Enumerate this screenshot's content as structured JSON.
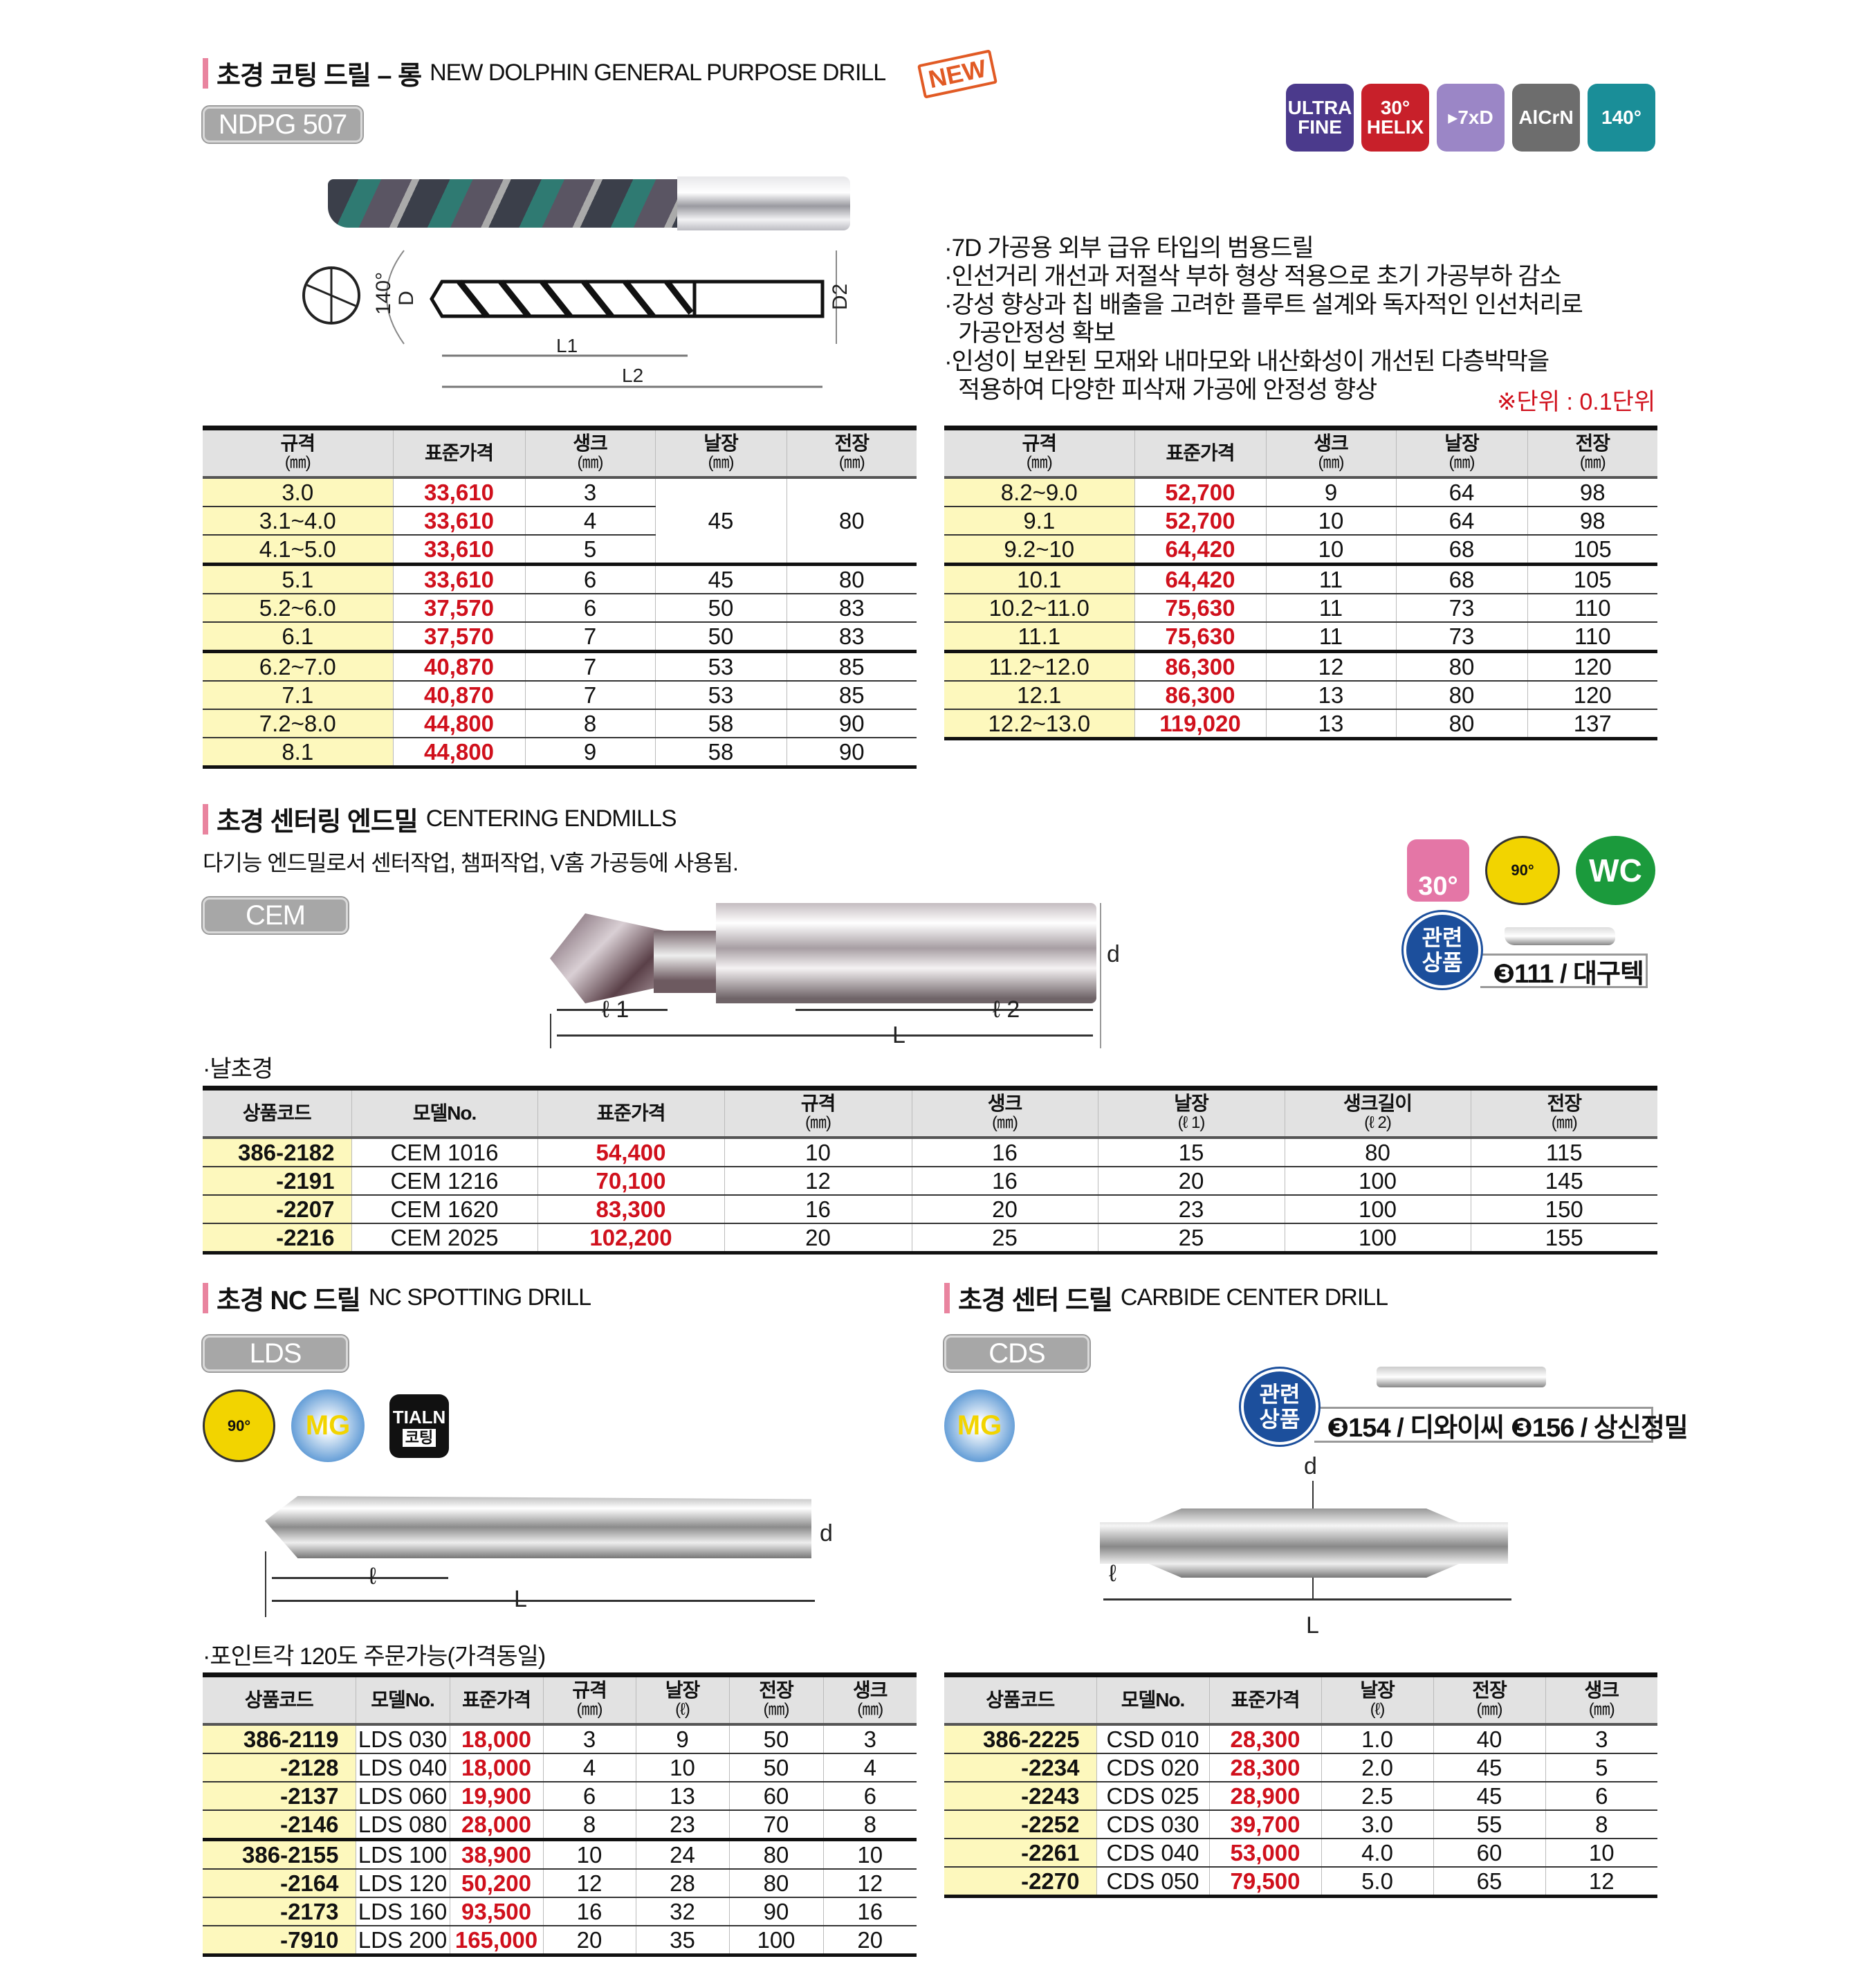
{
  "colors": {
    "accent_bar": "#e9849f",
    "price": "#d0101c",
    "code_bg": "#fdf8bd",
    "header_bg": "#e2e2e2",
    "new_badge": "#e15a24"
  },
  "section1": {
    "title_ko": "초경 코팅 드릴 – 롱",
    "title_en": "NEW DOLPHIN GENERAL PURPOSE DRILL",
    "new_label": "NEW",
    "model": "NDPG 507",
    "icons": [
      {
        "name": "ultra-fine-icon",
        "lines": [
          "ULTRA",
          "FINE"
        ],
        "color": "#4b3a8c"
      },
      {
        "name": "helix-30-icon",
        "lines": [
          "30°",
          "HELIX"
        ],
        "color": "#c8202a"
      },
      {
        "name": "7xd-icon",
        "lines": [
          "▸7xD"
        ],
        "color": "#9b86c6"
      },
      {
        "name": "alcrn-icon",
        "lines": [
          "AlCrN"
        ],
        "color": "#6d6d6d"
      },
      {
        "name": "point-140-icon",
        "lines": [
          "140°"
        ],
        "color": "#1a8e98"
      }
    ],
    "dims": {
      "angle": "140°",
      "D": "D",
      "D2": "D2",
      "L1": "L1",
      "L2": "L2"
    },
    "bullets": [
      "·7D 가공용 외부 급유 타입의 범용드릴",
      "·인선거리 개선과 저절삭 부하 형상 적용으로 초기 가공부하 감소",
      "·강성 향상과 칩 배출을 고려한 플루트 설계와 독자적인 인선처리로",
      "  가공안정성 확보",
      "·인성이 보완된 모재와 내마모와 내산화성이 개선된 다층박막을",
      "  적용하여 다양한 피삭재 가공에 안정성 향상"
    ],
    "unit_note": "※단위 : 0.1단위",
    "table_left": {
      "headers": [
        [
          "규격",
          "(㎜)"
        ],
        [
          "표준가격",
          ""
        ],
        [
          "생크",
          "(㎜)"
        ],
        [
          "날장",
          "(㎜)"
        ],
        [
          "전장",
          "(㎜)"
        ]
      ],
      "rows": [
        [
          "3.0",
          "33,610",
          "3",
          "45",
          "80"
        ],
        [
          "3.1~4.0",
          "33,610",
          "4",
          null,
          null
        ],
        [
          "4.1~5.0",
          "33,610",
          "5",
          null,
          null
        ],
        [
          "5.1",
          "33,610",
          "6",
          "45",
          "80"
        ],
        [
          "5.2~6.0",
          "37,570",
          "6",
          "50",
          "83"
        ],
        [
          "6.1",
          "37,570",
          "7",
          "50",
          "83"
        ],
        [
          "6.2~7.0",
          "40,870",
          "7",
          "53",
          "85"
        ],
        [
          "7.1",
          "40,870",
          "7",
          "53",
          "85"
        ],
        [
          "7.2~8.0",
          "44,800",
          "8",
          "58",
          "90"
        ],
        [
          "8.1",
          "44,800",
          "9",
          "58",
          "90"
        ]
      ]
    },
    "table_right": {
      "headers": [
        [
          "규격",
          "(㎜)"
        ],
        [
          "표준가격",
          ""
        ],
        [
          "생크",
          "(㎜)"
        ],
        [
          "날장",
          "(㎜)"
        ],
        [
          "전장",
          "(㎜)"
        ]
      ],
      "rows": [
        [
          "8.2~9.0",
          "52,700",
          "9",
          "64",
          "98"
        ],
        [
          "9.1",
          "52,700",
          "10",
          "64",
          "98"
        ],
        [
          "9.2~10",
          "64,420",
          "10",
          "68",
          "105"
        ],
        [
          "10.1",
          "64,420",
          "11",
          "68",
          "105"
        ],
        [
          "10.2~11.0",
          "75,630",
          "11",
          "73",
          "110"
        ],
        [
          "11.1",
          "75,630",
          "11",
          "73",
          "110"
        ],
        [
          "11.2~12.0",
          "86,300",
          "12",
          "80",
          "120"
        ],
        [
          "12.1",
          "86,300",
          "13",
          "80",
          "120"
        ],
        [
          "12.2~13.0",
          "119,020",
          "13",
          "80",
          "137"
        ]
      ]
    }
  },
  "section2": {
    "title_ko": "초경 센터링 엔드밀",
    "title_en": "CENTERING ENDMILLS",
    "subtitle": "다기능 엔드밀로서 센터작업, 챔퍼작업, V홈 가공등에 사용됨.",
    "model": "CEM",
    "icons": {
      "helix": "30°",
      "angle": "90°",
      "material": "WC"
    },
    "related": {
      "label": [
        "관련",
        "상품"
      ],
      "text": "❸111 / 대구텍"
    },
    "dims": {
      "l1": "ℓ 1",
      "l2": "ℓ 2",
      "L": "L",
      "d": "d"
    },
    "note": "·날초경",
    "table": {
      "headers": [
        [
          "상품코드",
          ""
        ],
        [
          "모델No.",
          ""
        ],
        [
          "표준가격",
          ""
        ],
        [
          "규격",
          "(㎜)"
        ],
        [
          "생크",
          "(㎜)"
        ],
        [
          "날장",
          "(ℓ 1)"
        ],
        [
          "생크길이",
          "(ℓ 2)"
        ],
        [
          "전장",
          "(㎜)"
        ]
      ],
      "rows": [
        [
          "386-2182",
          "CEM 1016",
          "54,400",
          "10",
          "16",
          "15",
          "80",
          "115"
        ],
        [
          "-2191",
          "CEM 1216",
          "70,100",
          "12",
          "16",
          "20",
          "100",
          "145"
        ],
        [
          "-2207",
          "CEM 1620",
          "83,300",
          "16",
          "20",
          "23",
          "100",
          "150"
        ],
        [
          "-2216",
          "CEM 2025",
          "102,200",
          "20",
          "25",
          "25",
          "100",
          "155"
        ]
      ]
    }
  },
  "section3": {
    "title_ko": "초경 NC 드릴",
    "title_en": "NC SPOTTING DRILL",
    "model": "LDS",
    "icons": {
      "angle": "90°",
      "mg": "MG",
      "coating": [
        "TIALN",
        "코팅"
      ]
    },
    "dims": {
      "l": "ℓ",
      "L": "L",
      "d": "d"
    },
    "note": "·포인트각 120도 주문가능(가격동일)",
    "table": {
      "headers": [
        [
          "상품코드",
          ""
        ],
        [
          "모델No.",
          ""
        ],
        [
          "표준가격",
          ""
        ],
        [
          "규격",
          "(㎜)"
        ],
        [
          "날장",
          "(ℓ)"
        ],
        [
          "전장",
          "(㎜)"
        ],
        [
          "생크",
          "(㎜)"
        ]
      ],
      "rows": [
        [
          "386-2119",
          "LDS 030",
          "18,000",
          "3",
          "9",
          "50",
          "3"
        ],
        [
          "-2128",
          "LDS 040",
          "18,000",
          "4",
          "10",
          "50",
          "4"
        ],
        [
          "-2137",
          "LDS 060",
          "19,900",
          "6",
          "13",
          "60",
          "6"
        ],
        [
          "-2146",
          "LDS 080",
          "28,000",
          "8",
          "23",
          "70",
          "8"
        ],
        [
          "386-2155",
          "LDS 100",
          "38,900",
          "10",
          "24",
          "80",
          "10"
        ],
        [
          "-2164",
          "LDS 120",
          "50,200",
          "12",
          "28",
          "80",
          "12"
        ],
        [
          "-2173",
          "LDS 160",
          "93,500",
          "16",
          "32",
          "90",
          "16"
        ],
        [
          "-7910",
          "LDS 200",
          "165,000",
          "20",
          "35",
          "100",
          "20"
        ]
      ]
    }
  },
  "section4": {
    "title_ko": "초경 센터 드릴",
    "title_en": "CARBIDE CENTER DRILL",
    "model": "CDS",
    "icons": {
      "mg": "MG"
    },
    "related": {
      "label": [
        "관련",
        "상품"
      ],
      "text": "❸154 / 디와이씨  ❸156 / 상신정밀"
    },
    "dims": {
      "l": "ℓ",
      "L": "L",
      "d": "d"
    },
    "table": {
      "headers": [
        [
          "상품코드",
          ""
        ],
        [
          "모델No.",
          ""
        ],
        [
          "표준가격",
          ""
        ],
        [
          "날장",
          "(ℓ)"
        ],
        [
          "전장",
          "(㎜)"
        ],
        [
          "생크",
          "(㎜)"
        ]
      ],
      "rows": [
        [
          "386-2225",
          "CSD 010",
          "28,300",
          "1.0",
          "40",
          "3"
        ],
        [
          "-2234",
          "CDS 020",
          "28,300",
          "2.0",
          "45",
          "5"
        ],
        [
          "-2243",
          "CDS 025",
          "28,900",
          "2.5",
          "45",
          "6"
        ],
        [
          "-2252",
          "CDS 030",
          "39,700",
          "3.0",
          "55",
          "8"
        ],
        [
          "-2261",
          "CDS 040",
          "53,000",
          "4.0",
          "60",
          "10"
        ],
        [
          "-2270",
          "CDS 050",
          "79,500",
          "5.0",
          "65",
          "12"
        ]
      ]
    }
  }
}
